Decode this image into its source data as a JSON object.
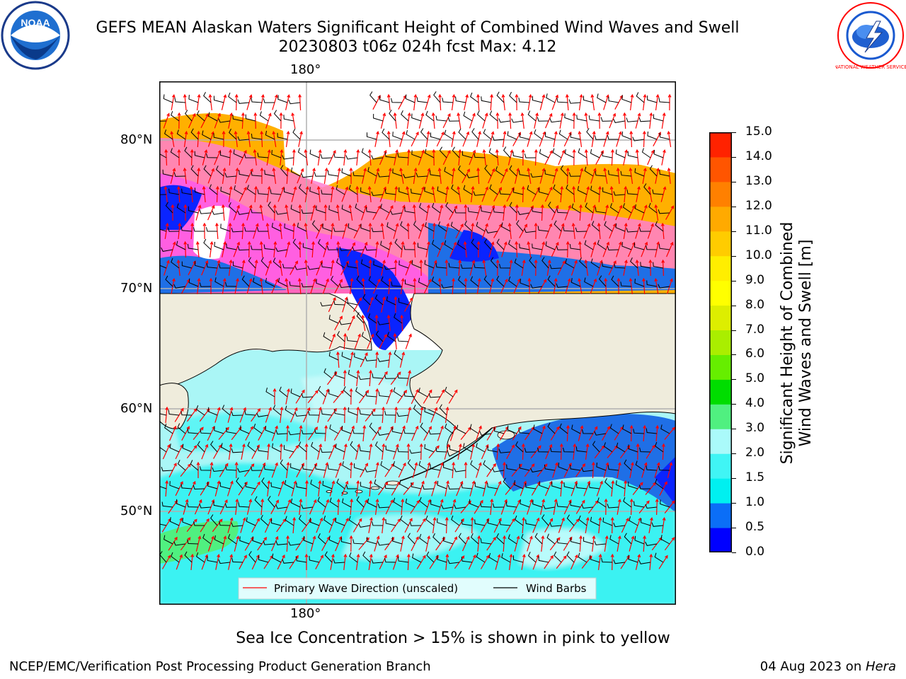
{
  "header": {
    "title_line1": "GEFS MEAN Alaskan Waters Significant Height of Combined Wind Waves and Swell",
    "title_line2": "20230803 t06z 024h fcst   Max: 4.12"
  },
  "logos": {
    "left": "NOAA",
    "right": "NATIONAL WEATHER SERVICE"
  },
  "map": {
    "lon_label_top": "180°",
    "lon_label_bottom": "180°",
    "lat_labels": [
      "80°N",
      "70°N",
      "60°N",
      "50°N"
    ],
    "legend": {
      "wave_dir": "Primary Wave Direction (unscaled)",
      "wind": "Wind Barbs"
    },
    "colors": {
      "land": "#efecdc",
      "wave_arrow": "#ff0000",
      "wind_barb": "#000000",
      "grid": "#b0b0b0"
    }
  },
  "colorbar": {
    "label_line1": "Significant Height of Combined",
    "label_line2": "Wind Waves and Swell [m]",
    "ticks": [
      "15.0",
      "14.0",
      "13.0",
      "12.0",
      "11.0",
      "10.0",
      "9.0",
      "8.0",
      "7.0",
      "6.0",
      "5.0",
      "4.0",
      "3.0",
      "2.0",
      "1.5",
      "1.0",
      "0.5",
      "0.0"
    ],
    "levels_bottom_to_top": [
      0,
      0.5,
      1.0,
      1.5,
      2.0,
      3.0,
      4.0,
      5.0,
      6.0,
      7.0,
      8.0,
      9.0,
      10.0,
      11.0,
      12.0,
      13.0,
      14.0,
      15.0
    ],
    "colors_bottom_to_top": [
      "#0000ff",
      "#0b6ef7",
      "#00f0f0",
      "#40f5f5",
      "#aafafa",
      "#50f080",
      "#00dd00",
      "#66ee00",
      "#aaee00",
      "#ddee00",
      "#ffff00",
      "#ffee00",
      "#ffcc00",
      "#ffaa00",
      "#ff8000",
      "#ff5500",
      "#ff2200"
    ]
  },
  "sea_ice_note": "Sea Ice Concentration > 15% is shown in pink to yellow",
  "footer": {
    "left": "NCEP/EMC/Verification Post Processing Product Generation Branch",
    "right_prefix": "04 Aug 2023 on ",
    "right_italic": "Hera"
  }
}
